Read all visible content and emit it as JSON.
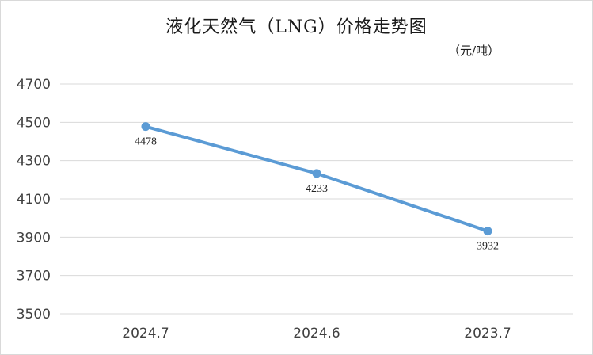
{
  "chart_data": {
    "type": "line",
    "title": "液化天然气（LNG）价格走势图",
    "unit_label": "（元/吨）",
    "categories": [
      "2024.7",
      "2024.6",
      "2023.7"
    ],
    "series": [
      {
        "values": [
          4478,
          4233,
          3932
        ],
        "color": "#5b9bd5"
      }
    ],
    "ylim": [
      3500,
      4700
    ],
    "yticks": [
      3500,
      3700,
      3900,
      4100,
      4300,
      4500,
      4700
    ],
    "grid": true,
    "data_labels": true
  }
}
